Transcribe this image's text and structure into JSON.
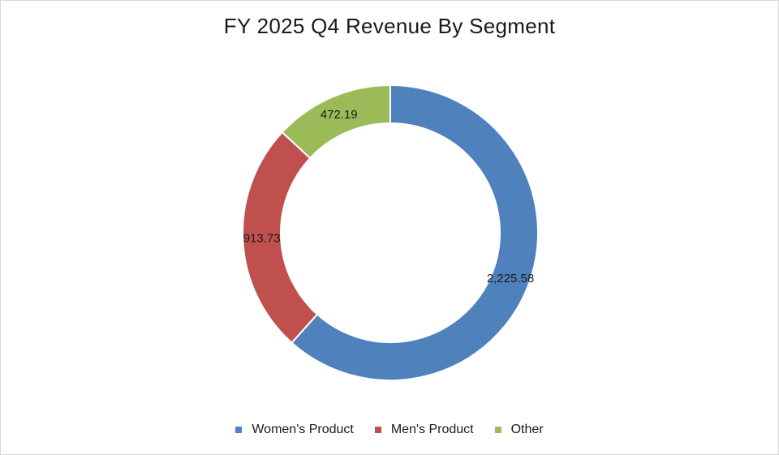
{
  "chart_data": {
    "type": "pie",
    "variant": "donut",
    "title": "FY 2025 Q4 Revenue By Segment",
    "categories": [
      "Women's Product",
      "Men's Product",
      "Other"
    ],
    "values": [
      2225.58,
      913.73,
      472.19
    ],
    "data_labels": [
      "2,225.58",
      "913.73",
      "472.19"
    ],
    "colors": [
      "#4f81bd",
      "#c0504d",
      "#9bbb59"
    ],
    "legend_position": "bottom",
    "start_angle": "top, clockwise"
  }
}
